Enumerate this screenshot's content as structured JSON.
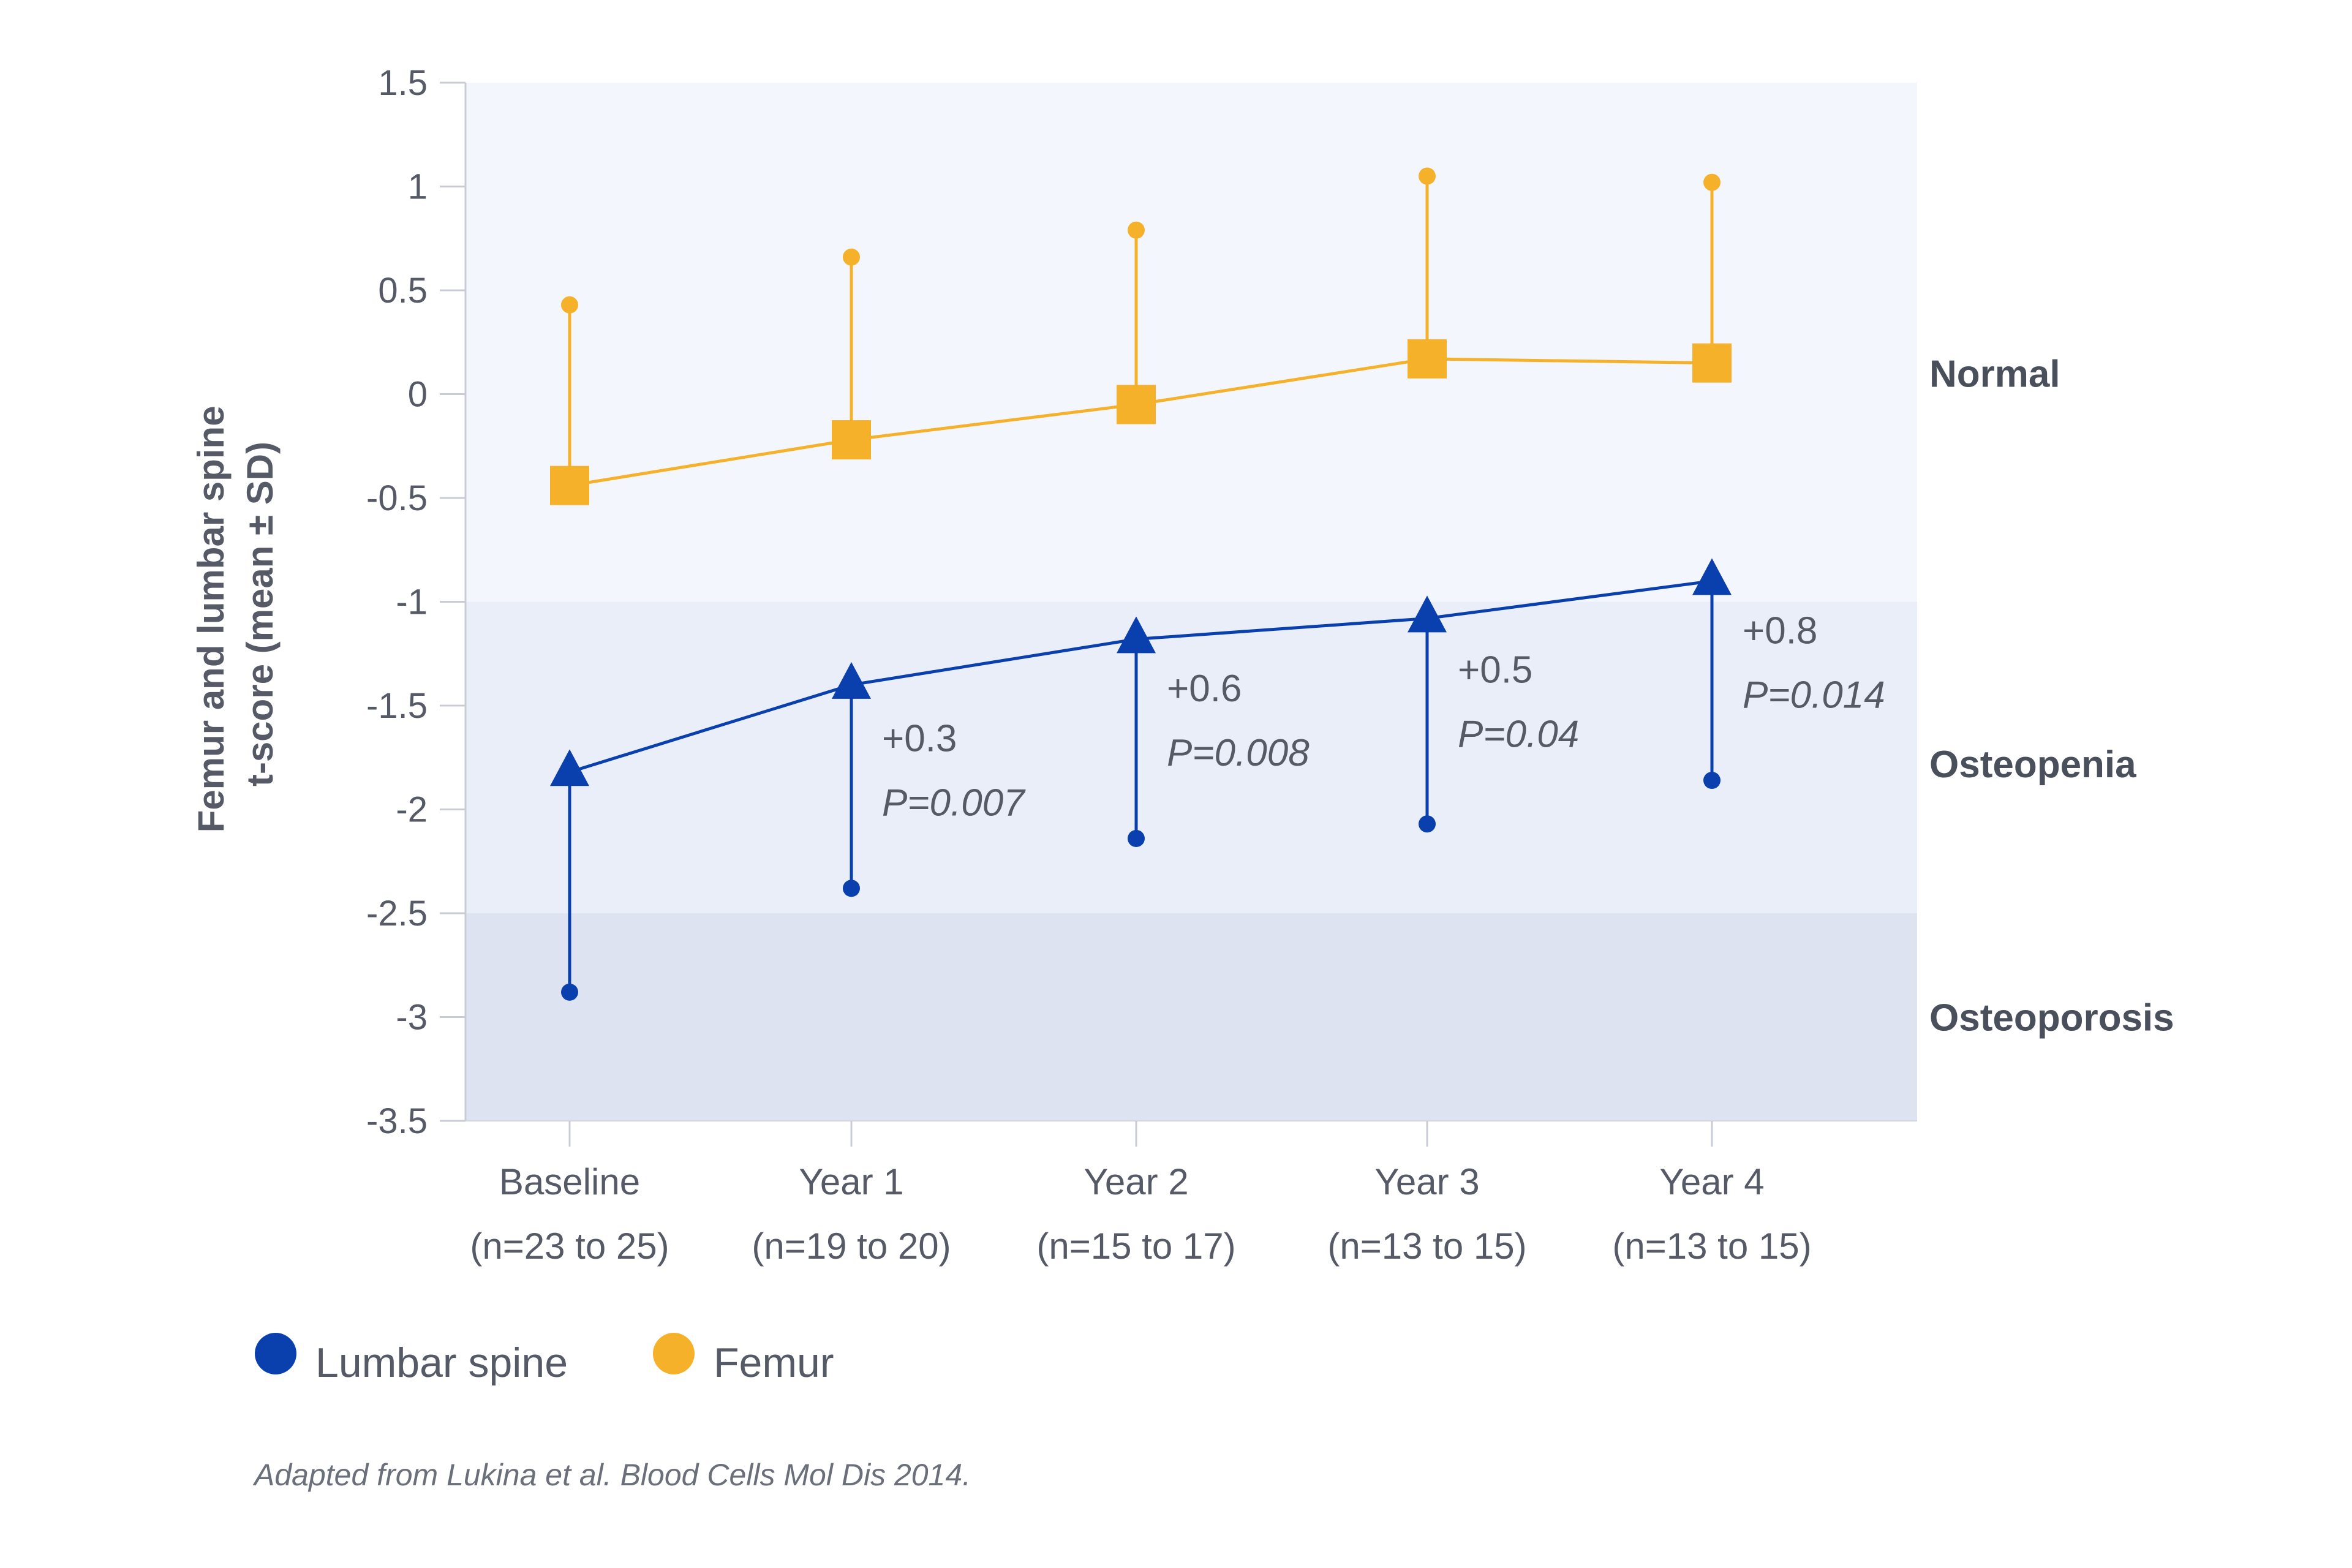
{
  "colors": {
    "lumbar_spine": "#0a3fae",
    "femur": "#f6b12a",
    "zone_normal": "#f3f6fc",
    "zone_osteopenia": "#e9eef9",
    "zone_osteoporosis": "#dee3f2"
  },
  "chart_data": {
    "type": "line",
    "ylabel_lines": [
      "Femur and lumbar spine",
      "t-score (mean ± SD)"
    ],
    "ylim": [
      -3.5,
      1.5
    ],
    "y_ticks": [
      "1.5",
      "1",
      "0.5",
      "0",
      "-0.5",
      "-1",
      "-1.5",
      "-2",
      "-2.5",
      "-3",
      "-3.5"
    ],
    "y_tick_values": [
      1.5,
      1,
      0.5,
      0,
      -0.5,
      -1,
      -1.5,
      -2,
      -2.5,
      -3,
      -3.5
    ],
    "categories": [
      {
        "label": "Baseline",
        "n": "(n=23 to 25)"
      },
      {
        "label": "Year 1",
        "n": "(n=19 to 20)"
      },
      {
        "label": "Year 2",
        "n": "(n=15 to 17)"
      },
      {
        "label": "Year 3",
        "n": "(n=13 to 15)"
      },
      {
        "label": "Year 4",
        "n": "(n=13 to 15)"
      }
    ],
    "series": [
      {
        "name": "Lumbar spine",
        "color_key": "lumbar_spine",
        "marker": "triangle",
        "mean": [
          -1.82,
          -1.4,
          -1.18,
          -1.08,
          -0.9
        ],
        "error_end": [
          -2.88,
          -2.38,
          -2.14,
          -2.07,
          -1.86
        ]
      },
      {
        "name": "Femur",
        "color_key": "femur",
        "marker": "square",
        "mean": [
          -0.44,
          -0.22,
          -0.05,
          0.17,
          0.15
        ],
        "error_end": [
          0.43,
          0.66,
          0.79,
          1.05,
          1.02
        ]
      }
    ],
    "zones": [
      {
        "label": "Normal",
        "from": -1,
        "to": 1.5,
        "color_key": "zone_normal",
        "label_value": 0.1
      },
      {
        "label": "Osteopenia",
        "from": -2.5,
        "to": -1,
        "color_key": "zone_osteopenia",
        "label_value": -1.78
      },
      {
        "label": "Osteoporosis",
        "from": -3.5,
        "to": -2.5,
        "color_key": "zone_osteoporosis",
        "label_value": -3.0
      }
    ],
    "annotations": [
      {
        "category_index": 1,
        "change": "+0.3",
        "p": "P=0.007",
        "value": -1.72
      },
      {
        "category_index": 2,
        "change": "+0.6",
        "p": "P=0.008",
        "value": -1.48
      },
      {
        "category_index": 3,
        "change": "+0.5",
        "p": "P=0.04",
        "value": -1.39
      },
      {
        "category_index": 4,
        "change": "+0.8",
        "p": "P=0.014",
        "value": -1.2
      }
    ],
    "legend_position": "bottom-left",
    "grid": false
  },
  "source_note": "Adapted from Lukina et al. Blood Cells Mol Dis 2014."
}
